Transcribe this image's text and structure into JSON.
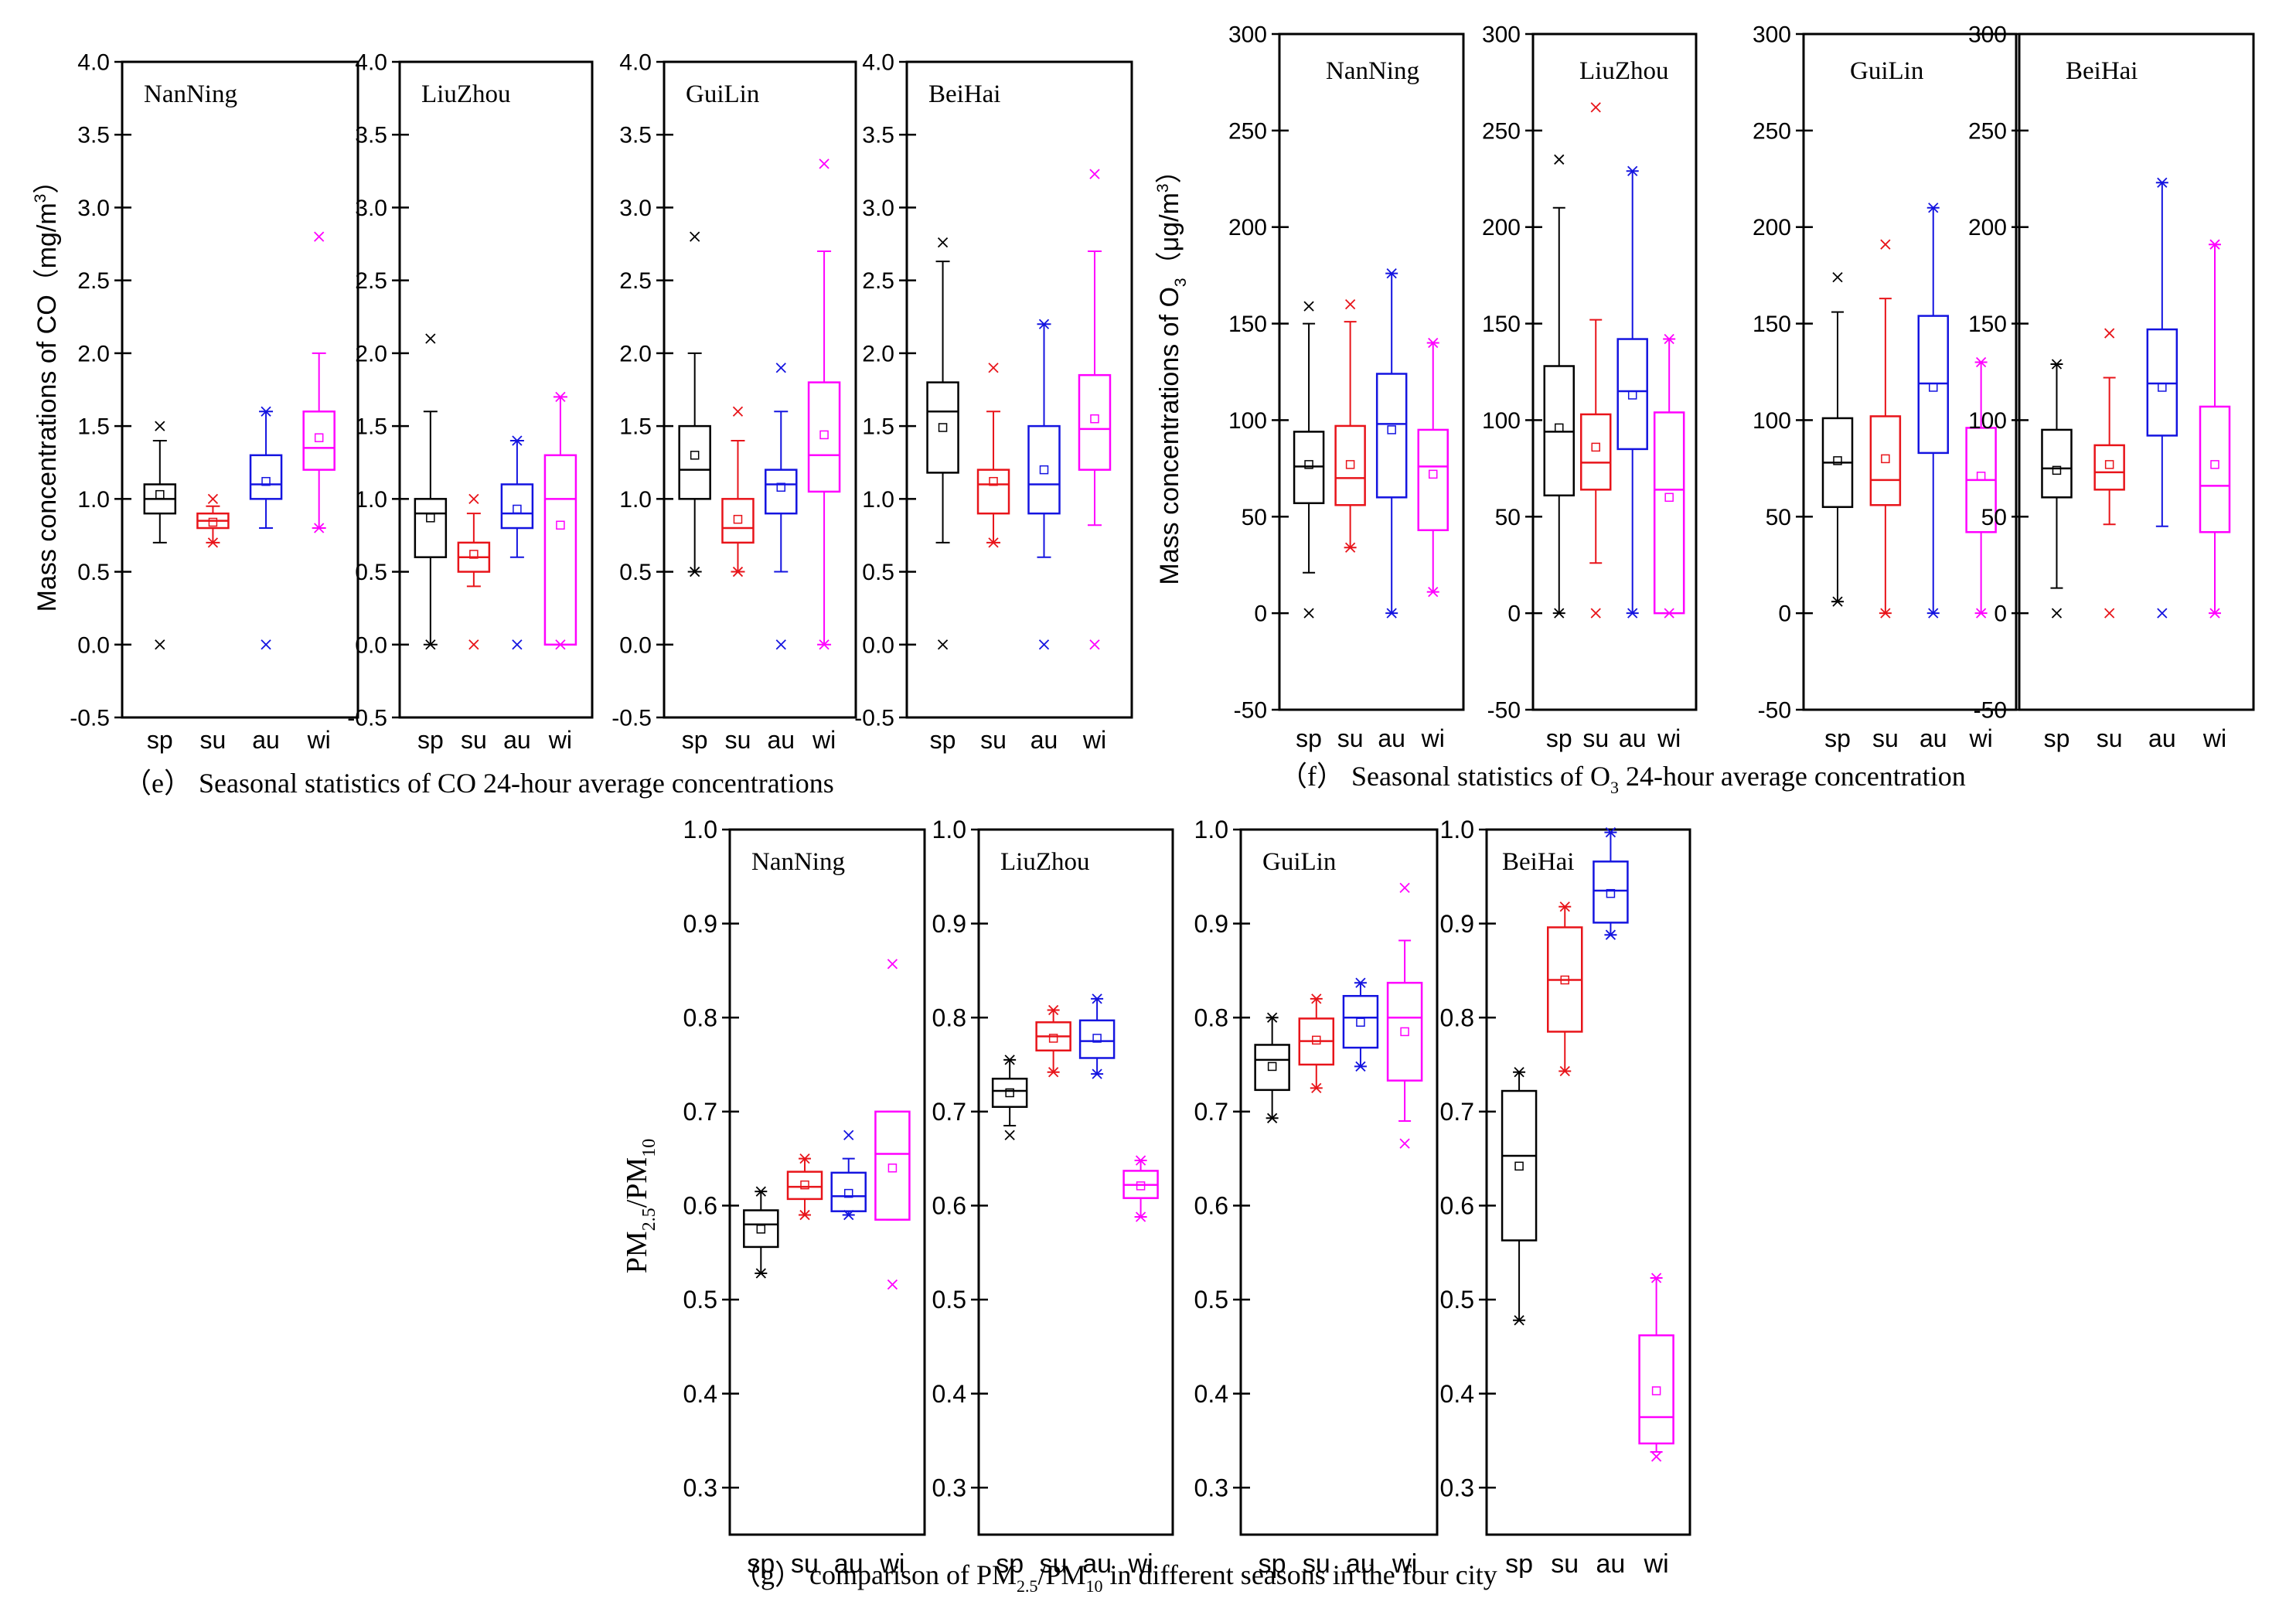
{
  "colors": {
    "sp": "#000000",
    "su": "#e8141a",
    "au": "#1414e0",
    "wi": "#ff00ff",
    "frame": "#000000"
  },
  "chart_data": [
    {
      "id": "co",
      "type": "box",
      "caption": "（e） Seasonal statistics of  CO 24-hour average concentrations",
      "ylabel": "Mass concentrations of CO（mg/m³）",
      "ylabel_parts": [
        "Mass concentrations of CO（mg/m",
        "3",
        "）"
      ],
      "ylim": [
        -0.5,
        4.0
      ],
      "yticks": [
        "-0.5",
        "0.0",
        "0.5",
        "1.0",
        "1.5",
        "2.0",
        "2.5",
        "3.0",
        "3.5",
        "4.0"
      ],
      "categories": [
        "sp",
        "su",
        "au",
        "wi"
      ],
      "panels": [
        {
          "city": "NanNing",
          "boxes": [
            {
              "season": "sp",
              "min": 0.0,
              "wlo": 0.7,
              "q1": 0.9,
              "med": 1.0,
              "q3": 1.1,
              "whi": 1.4,
              "mean": 1.03,
              "max": 1.5
            },
            {
              "season": "su",
              "min": 0.7,
              "wlo": 0.7,
              "q1": 0.8,
              "med": 0.85,
              "q3": 0.9,
              "whi": 0.95,
              "mean": 0.84,
              "max": 1.0
            },
            {
              "season": "au",
              "min": 0.0,
              "wlo": 0.8,
              "q1": 1.0,
              "med": 1.1,
              "q3": 1.3,
              "whi": 1.6,
              "mean": 1.12,
              "max": 1.6
            },
            {
              "season": "wi",
              "min": 0.8,
              "wlo": 0.8,
              "q1": 1.2,
              "med": 1.35,
              "q3": 1.6,
              "whi": 2.0,
              "mean": 1.42,
              "max": 2.8
            }
          ]
        },
        {
          "city": "LiuZhou",
          "boxes": [
            {
              "season": "sp",
              "min": 0.0,
              "wlo": 0.0,
              "q1": 0.6,
              "med": 0.9,
              "q3": 1.0,
              "whi": 1.6,
              "mean": 0.87,
              "max": 2.1
            },
            {
              "season": "su",
              "min": 0.0,
              "wlo": 0.4,
              "q1": 0.5,
              "med": 0.6,
              "q3": 0.7,
              "whi": 0.9,
              "mean": 0.62,
              "max": 1.0
            },
            {
              "season": "au",
              "min": 0.0,
              "wlo": 0.6,
              "q1": 0.8,
              "med": 0.9,
              "q3": 1.1,
              "whi": 1.4,
              "mean": 0.93,
              "max": 1.4
            },
            {
              "season": "wi",
              "min": 0.0,
              "wlo": 0.0,
              "q1": 0.0,
              "med": 1.0,
              "q3": 1.3,
              "whi": 1.7,
              "mean": 0.82,
              "max": 1.7
            }
          ]
        },
        {
          "city": "GuiLin",
          "boxes": [
            {
              "season": "sp",
              "min": 0.5,
              "wlo": 0.5,
              "q1": 1.0,
              "med": 1.2,
              "q3": 1.5,
              "whi": 2.0,
              "mean": 1.3,
              "max": 2.8
            },
            {
              "season": "su",
              "min": 0.5,
              "wlo": 0.5,
              "q1": 0.7,
              "med": 0.8,
              "q3": 1.0,
              "whi": 1.4,
              "mean": 0.86,
              "max": 1.6
            },
            {
              "season": "au",
              "min": 0.0,
              "wlo": 0.5,
              "q1": 0.9,
              "med": 1.1,
              "q3": 1.2,
              "whi": 1.6,
              "mean": 1.08,
              "max": 1.9
            },
            {
              "season": "wi",
              "min": 0.0,
              "wlo": 0.0,
              "q1": 1.05,
              "med": 1.3,
              "q3": 1.8,
              "whi": 2.7,
              "mean": 1.44,
              "max": 3.3
            }
          ]
        },
        {
          "city": "BeiHai",
          "boxes": [
            {
              "season": "sp",
              "min": 0.0,
              "wlo": 0.7,
              "q1": 1.18,
              "med": 1.6,
              "q3": 1.8,
              "whi": 2.63,
              "mean": 1.49,
              "max": 2.76
            },
            {
              "season": "su",
              "min": 0.7,
              "wlo": 0.7,
              "q1": 0.9,
              "med": 1.1,
              "q3": 1.2,
              "whi": 1.6,
              "mean": 1.12,
              "max": 1.9
            },
            {
              "season": "au",
              "min": 0.0,
              "wlo": 0.6,
              "q1": 0.9,
              "med": 1.1,
              "q3": 1.5,
              "whi": 2.2,
              "mean": 1.2,
              "max": 2.2
            },
            {
              "season": "wi",
              "min": 0.0,
              "wlo": 0.82,
              "q1": 1.2,
              "med": 1.48,
              "q3": 1.85,
              "whi": 2.7,
              "mean": 1.55,
              "max": 3.23
            }
          ]
        }
      ]
    },
    {
      "id": "o3",
      "type": "box",
      "caption": "（f） Seasonal statistics of O₃ 24-hour average concentration",
      "caption_parts": [
        "（f） Seasonal statistics of O",
        "3",
        " 24-hour average concentration"
      ],
      "ylabel": "Mass concentrations of O₃（μg/m³）",
      "ylabel_parts": [
        "Mass concentrations of O",
        "3",
        "（μg/m",
        "3",
        "）"
      ],
      "ylim": [
        -50,
        300
      ],
      "yticks": [
        "-50",
        "0",
        "50",
        "100",
        "150",
        "200",
        "250",
        "300"
      ],
      "categories": [
        "sp",
        "su",
        "au",
        "wi"
      ],
      "panels": [
        {
          "city": "NanNing",
          "boxes": [
            {
              "season": "sp",
              "min": 0,
              "wlo": 21,
              "q1": 57,
              "med": 76,
              "q3": 94,
              "whi": 150,
              "mean": 77,
              "max": 159
            },
            {
              "season": "su",
              "min": 34,
              "wlo": 34,
              "q1": 56,
              "med": 70,
              "q3": 97,
              "whi": 151,
              "mean": 77,
              "max": 160
            },
            {
              "season": "au",
              "min": 0,
              "wlo": 0,
              "q1": 60,
              "med": 98,
              "q3": 124,
              "whi": 176,
              "mean": 95,
              "max": 176
            },
            {
              "season": "wi",
              "min": 11,
              "wlo": 11,
              "q1": 43,
              "med": 76,
              "q3": 95,
              "whi": 140,
              "mean": 72,
              "max": 140
            }
          ]
        },
        {
          "city": "LiuZhou",
          "boxes": [
            {
              "season": "sp",
              "min": 0,
              "wlo": 0,
              "q1": 61,
              "med": 94,
              "q3": 128,
              "whi": 210,
              "mean": 96,
              "max": 235
            },
            {
              "season": "su",
              "min": 0,
              "wlo": 26,
              "q1": 64,
              "med": 78,
              "q3": 103,
              "whi": 152,
              "mean": 86,
              "max": 262
            },
            {
              "season": "au",
              "min": 0,
              "wlo": 0,
              "q1": 85,
              "med": 115,
              "q3": 142,
              "whi": 229,
              "mean": 113,
              "max": 229
            },
            {
              "season": "wi",
              "min": 0,
              "wlo": 0,
              "q1": 0,
              "med": 64,
              "q3": 104,
              "whi": 142,
              "mean": 60,
              "max": 142
            }
          ]
        },
        {
          "city": "GuiLin",
          "boxes": [
            {
              "season": "sp",
              "min": 6,
              "wlo": 6,
              "q1": 55,
              "med": 78,
              "q3": 101,
              "whi": 156,
              "mean": 79,
              "max": 174
            },
            {
              "season": "su",
              "min": 0,
              "wlo": 0,
              "q1": 56,
              "med": 69,
              "q3": 102,
              "whi": 163,
              "mean": 80,
              "max": 191
            },
            {
              "season": "au",
              "min": 0,
              "wlo": 0,
              "q1": 83,
              "med": 119,
              "q3": 154,
              "whi": 210,
              "mean": 117,
              "max": 210
            },
            {
              "season": "wi",
              "min": 0,
              "wlo": 0,
              "q1": 42,
              "med": 69,
              "q3": 96,
              "whi": 130,
              "mean": 71,
              "max": 130
            }
          ]
        },
        {
          "city": "BeiHai",
          "boxes": [
            {
              "season": "sp",
              "min": 0,
              "wlo": 13,
              "q1": 60,
              "med": 75,
              "q3": 95,
              "whi": 129,
              "mean": 74,
              "max": 129
            },
            {
              "season": "su",
              "min": 0,
              "wlo": 46,
              "q1": 64,
              "med": 73,
              "q3": 87,
              "whi": 122,
              "mean": 77,
              "max": 145
            },
            {
              "season": "au",
              "min": 0,
              "wlo": 45,
              "q1": 92,
              "med": 119,
              "q3": 147,
              "whi": 223,
              "mean": 117,
              "max": 223
            },
            {
              "season": "wi",
              "min": 0,
              "wlo": 0,
              "q1": 42,
              "med": 66,
              "q3": 107,
              "whi": 191,
              "mean": 77,
              "max": 191
            }
          ]
        }
      ]
    },
    {
      "id": "pm",
      "type": "box",
      "caption": "（g） comparison of PM₂.₅/PM₁₀ in different seasons in the four city",
      "caption_parts": [
        "（g） comparison of PM",
        "2.5",
        "/PM",
        "10",
        " in different seasons in the four city"
      ],
      "ylabel": "PM₂.₅/PM₁₀",
      "ylabel_parts": [
        "PM",
        "2.5",
        "/PM",
        "10"
      ],
      "ylim": [
        0.25,
        1.0
      ],
      "yticks": [
        "0.3",
        "0.4",
        "0.5",
        "0.6",
        "0.7",
        "0.8",
        "0.9",
        "1.0"
      ],
      "categories": [
        "sp",
        "su",
        "au",
        "wi"
      ],
      "panels": [
        {
          "city": "NanNing",
          "boxes": [
            {
              "season": "sp",
              "min": 0.528,
              "wlo": 0.528,
              "q1": 0.556,
              "med": 0.58,
              "q3": 0.595,
              "whi": 0.615,
              "mean": 0.575,
              "max": 0.615
            },
            {
              "season": "su",
              "min": 0.59,
              "wlo": 0.59,
              "q1": 0.607,
              "med": 0.62,
              "q3": 0.636,
              "whi": 0.65,
              "mean": 0.622,
              "max": 0.65
            },
            {
              "season": "au",
              "min": 0.59,
              "wlo": 0.59,
              "q1": 0.594,
              "med": 0.61,
              "q3": 0.635,
              "whi": 0.65,
              "mean": 0.613,
              "max": 0.675
            },
            {
              "season": "wi",
              "min": 0.516,
              "wlo": 0.585,
              "q1": 0.585,
              "med": 0.655,
              "q3": 0.7,
              "whi": 0.7,
              "mean": 0.64,
              "max": 0.857
            }
          ]
        },
        {
          "city": "LiuZhou",
          "boxes": [
            {
              "season": "sp",
              "min": 0.675,
              "wlo": 0.685,
              "q1": 0.705,
              "med": 0.722,
              "q3": 0.735,
              "whi": 0.755,
              "mean": 0.72,
              "max": 0.755
            },
            {
              "season": "su",
              "min": 0.742,
              "wlo": 0.742,
              "q1": 0.765,
              "med": 0.78,
              "q3": 0.795,
              "whi": 0.808,
              "mean": 0.778,
              "max": 0.808
            },
            {
              "season": "au",
              "min": 0.74,
              "wlo": 0.74,
              "q1": 0.757,
              "med": 0.775,
              "q3": 0.797,
              "whi": 0.82,
              "mean": 0.778,
              "max": 0.82
            },
            {
              "season": "wi",
              "min": 0.588,
              "wlo": 0.588,
              "q1": 0.608,
              "med": 0.622,
              "q3": 0.637,
              "whi": 0.648,
              "mean": 0.621,
              "max": 0.648
            }
          ]
        },
        {
          "city": "GuiLin",
          "boxes": [
            {
              "season": "sp",
              "min": 0.693,
              "wlo": 0.693,
              "q1": 0.723,
              "med": 0.755,
              "q3": 0.771,
              "whi": 0.8,
              "mean": 0.748,
              "max": 0.8
            },
            {
              "season": "su",
              "min": 0.725,
              "wlo": 0.725,
              "q1": 0.75,
              "med": 0.775,
              "q3": 0.799,
              "whi": 0.82,
              "mean": 0.776,
              "max": 0.82
            },
            {
              "season": "au",
              "min": 0.748,
              "wlo": 0.748,
              "q1": 0.768,
              "med": 0.8,
              "q3": 0.823,
              "whi": 0.837,
              "mean": 0.795,
              "max": 0.837
            },
            {
              "season": "wi",
              "min": 0.666,
              "wlo": 0.69,
              "q1": 0.733,
              "med": 0.8,
              "q3": 0.837,
              "whi": 0.882,
              "mean": 0.785,
              "max": 0.938
            }
          ]
        },
        {
          "city": "BeiHai",
          "boxes": [
            {
              "season": "sp",
              "min": 0.478,
              "wlo": 0.478,
              "q1": 0.563,
              "med": 0.653,
              "q3": 0.722,
              "whi": 0.742,
              "mean": 0.642,
              "max": 0.742
            },
            {
              "season": "su",
              "min": 0.743,
              "wlo": 0.743,
              "q1": 0.785,
              "med": 0.84,
              "q3": 0.896,
              "whi": 0.918,
              "mean": 0.84,
              "max": 0.918
            },
            {
              "season": "au",
              "min": 0.888,
              "wlo": 0.888,
              "q1": 0.901,
              "med": 0.935,
              "q3": 0.966,
              "whi": 0.997,
              "mean": 0.932,
              "max": 0.997
            },
            {
              "season": "wi",
              "min": 0.333,
              "wlo": 0.338,
              "q1": 0.347,
              "med": 0.375,
              "q3": 0.462,
              "whi": 0.523,
              "mean": 0.403,
              "max": 0.523
            }
          ]
        }
      ]
    }
  ]
}
